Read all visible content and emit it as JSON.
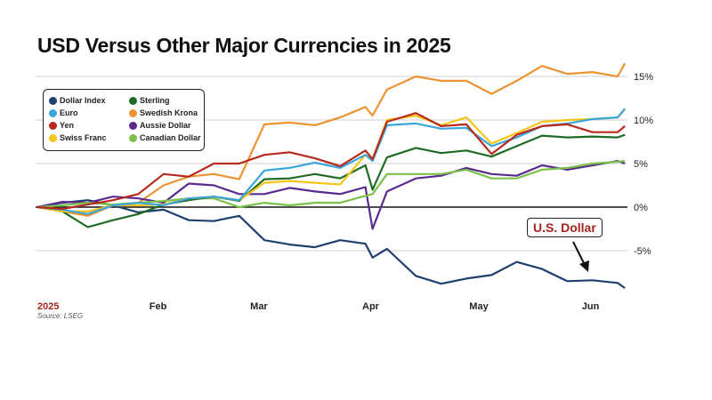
{
  "chart_data": {
    "type": "line",
    "title": "USD Versus Other Major Currencies in 2025",
    "source": "Source: LSEG",
    "annotation": "U.S. Dollar",
    "x": [
      "2025-01-01",
      "2025-01-08",
      "2025-01-15",
      "2025-01-22",
      "2025-01-29",
      "2025-02-05",
      "2025-02-12",
      "2025-02-19",
      "2025-02-26",
      "2025-03-05",
      "2025-03-12",
      "2025-03-19",
      "2025-03-26",
      "2025-04-02",
      "2025-04-04",
      "2025-04-08",
      "2025-04-16",
      "2025-04-23",
      "2025-04-30",
      "2025-05-07",
      "2025-05-14",
      "2025-05-21",
      "2025-05-28",
      "2025-06-04",
      "2025-06-11",
      "2025-06-13"
    ],
    "x_ticks": [
      {
        "date": "2025-01-01",
        "label": "2025"
      },
      {
        "date": "2025-02-01",
        "label": "Feb"
      },
      {
        "date": "2025-03-01",
        "label": "Mar"
      },
      {
        "date": "2025-04-01",
        "label": "Apr"
      },
      {
        "date": "2025-05-01",
        "label": "May"
      },
      {
        "date": "2025-06-01",
        "label": "Jun"
      }
    ],
    "y_ticks": [
      {
        "value": 15,
        "label": "15%"
      },
      {
        "value": 10,
        "label": "10%"
      },
      {
        "value": 5,
        "label": "5%"
      },
      {
        "value": 0,
        "label": "0%"
      },
      {
        "value": -5,
        "label": "-5%"
      }
    ],
    "ylim": [
      -10,
      17
    ],
    "grid": true,
    "legend_position": "top-left",
    "series": [
      {
        "name": "Dollar Index",
        "color": "#1f3f6e",
        "values": [
          0,
          0.5,
          0.8,
          0.2,
          -0.6,
          -0.3,
          -1.5,
          -1.6,
          -1.0,
          -3.8,
          -4.3,
          -4.6,
          -3.8,
          -4.2,
          -5.8,
          -4.8,
          -7.9,
          -8.8,
          -8.2,
          -7.8,
          -6.3,
          -7.1,
          -8.5,
          -8.4,
          -8.7,
          -9.3
        ]
      },
      {
        "name": "Euro",
        "color": "#3aa6dc",
        "values": [
          0,
          -0.3,
          -0.8,
          0.2,
          0.5,
          0.2,
          1.0,
          1.2,
          0.8,
          4.2,
          4.5,
          5.1,
          4.5,
          6.0,
          5.3,
          9.4,
          9.6,
          9.0,
          9.1,
          7.0,
          8.0,
          9.3,
          9.6,
          10.1,
          10.3,
          11.3
        ]
      },
      {
        "name": "Yen",
        "color": "#b52a1c",
        "values": [
          0,
          -0.2,
          0.3,
          0.8,
          1.5,
          3.8,
          3.5,
          5.0,
          5.0,
          6.0,
          6.3,
          5.6,
          4.7,
          6.5,
          5.5,
          9.8,
          10.8,
          9.3,
          9.5,
          6.1,
          8.3,
          9.3,
          9.5,
          8.6,
          8.6,
          9.3
        ]
      },
      {
        "name": "Swiss Franc",
        "color": "#f5c518",
        "values": [
          0,
          -0.5,
          -0.5,
          0.2,
          0.2,
          0.3,
          1.0,
          1.2,
          0.8,
          2.8,
          3.0,
          2.8,
          2.6,
          6.0,
          5.5,
          10.0,
          10.5,
          9.4,
          10.3,
          7.3,
          8.5,
          9.8,
          10.0,
          10.1,
          10.3,
          11.2
        ]
      },
      {
        "name": "Sterling",
        "color": "#1e6b23",
        "values": [
          0,
          -0.5,
          -2.3,
          -1.5,
          -0.8,
          0.3,
          0.8,
          1.2,
          0.7,
          3.2,
          3.3,
          3.8,
          3.3,
          4.8,
          2.0,
          5.7,
          6.8,
          6.2,
          6.5,
          5.8,
          7.0,
          8.2,
          8.0,
          8.1,
          8.0,
          8.3
        ]
      },
      {
        "name": "Swedish Krona",
        "color": "#ec9332",
        "values": [
          0,
          -0.5,
          -1.0,
          0.2,
          0.5,
          2.5,
          3.5,
          3.8,
          3.2,
          9.5,
          9.7,
          9.4,
          10.3,
          11.5,
          10.5,
          13.5,
          15.0,
          14.5,
          14.5,
          13.0,
          14.5,
          16.2,
          15.3,
          15.5,
          15.0,
          16.5
        ]
      },
      {
        "name": "Aussie Dollar",
        "color": "#5b2a8e",
        "values": [
          0,
          0.6,
          0.5,
          1.2,
          1.0,
          0.5,
          2.7,
          2.5,
          1.5,
          1.5,
          2.2,
          1.8,
          1.5,
          2.3,
          -2.5,
          1.8,
          3.3,
          3.6,
          4.5,
          3.8,
          3.6,
          4.8,
          4.3,
          4.8,
          5.3,
          5.0
        ]
      },
      {
        "name": "Canadian Dollar",
        "color": "#7cc24a",
        "values": [
          0,
          0.2,
          0.5,
          0.3,
          0.5,
          0.7,
          1.0,
          1.0,
          0.0,
          0.5,
          0.2,
          0.5,
          0.5,
          1.3,
          1.5,
          3.8,
          3.8,
          3.8,
          4.3,
          3.3,
          3.3,
          4.3,
          4.5,
          5.0,
          5.2,
          5.3
        ]
      }
    ]
  }
}
